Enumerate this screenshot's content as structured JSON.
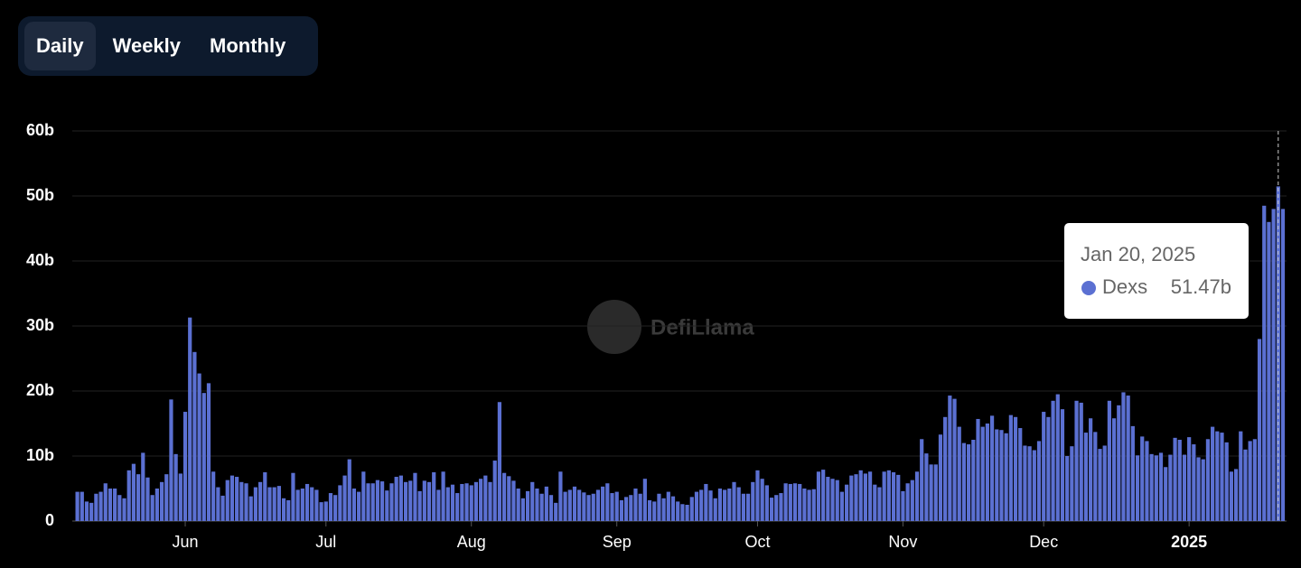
{
  "controls": {
    "buttons": [
      "Daily",
      "Weekly",
      "Monthly"
    ],
    "active": "Daily"
  },
  "watermark": "DefiLlama",
  "chart_data": {
    "type": "bar",
    "categories": [
      null,
      null,
      null,
      null,
      null,
      null,
      null,
      null,
      null,
      null,
      null,
      null,
      null,
      null,
      null,
      null,
      null,
      null,
      null,
      null,
      null,
      null,
      null,
      "Jun",
      null,
      null,
      null,
      null,
      null,
      null,
      null,
      null,
      null,
      null,
      null,
      null,
      null,
      null,
      null,
      null,
      null,
      null,
      null,
      null,
      null,
      null,
      null,
      null,
      null,
      null,
      null,
      null,
      null,
      "Jul",
      null,
      null,
      null,
      null,
      null,
      null,
      null,
      null,
      null,
      null,
      null,
      null,
      null,
      null,
      null,
      null,
      null,
      null,
      null,
      null,
      null,
      null,
      null,
      null,
      null,
      null,
      null,
      null,
      null,
      null,
      "Aug",
      null,
      null,
      null,
      null,
      null,
      null,
      null,
      null,
      null,
      null,
      null,
      null,
      null,
      null,
      null,
      null,
      null,
      null,
      null,
      null,
      null,
      null,
      null,
      null,
      null,
      null,
      null,
      null,
      null,
      null,
      "Sep",
      null,
      null,
      null,
      null,
      null,
      null,
      null,
      null,
      null,
      null,
      null,
      null,
      null,
      null,
      null,
      null,
      null,
      null,
      null,
      null,
      null,
      null,
      null,
      null,
      null,
      null,
      null,
      null,
      null,
      "Oct",
      null,
      null,
      null,
      null,
      null,
      null,
      null,
      null,
      null,
      null,
      null,
      null,
      null,
      null,
      null,
      null,
      null,
      null,
      null,
      null,
      null,
      null,
      null,
      null,
      null,
      null,
      null,
      null,
      null,
      null,
      "Nov",
      null,
      null,
      null,
      null,
      null,
      null,
      null,
      null,
      null,
      null,
      null,
      null,
      null,
      null,
      null,
      null,
      null,
      null,
      null,
      null,
      null,
      null,
      null,
      null,
      null,
      null,
      null,
      null,
      null,
      "Dec",
      null,
      null,
      null,
      null,
      null,
      null,
      null,
      null,
      null,
      null,
      null,
      null,
      null,
      null,
      null,
      null,
      null,
      null,
      null,
      null,
      null,
      null,
      null,
      null,
      null,
      null,
      null,
      null,
      null,
      null,
      "2025",
      null,
      null,
      null,
      null,
      null,
      null,
      null,
      null,
      null,
      null,
      null,
      null,
      null,
      null,
      null,
      null,
      null,
      null,
      null,
      null
    ],
    "series": [
      {
        "name": "Dexs",
        "color": "#5b70d2",
        "values": [
          4.5,
          4.5,
          3,
          2.8,
          4.2,
          4.5,
          5.8,
          5,
          5,
          4,
          3.5,
          7.8,
          8.8,
          7.2,
          10.5,
          6.7,
          4,
          5,
          6,
          7.2,
          18.7,
          10.3,
          7.3,
          16.8,
          31.3,
          26,
          22.7,
          19.7,
          21.2,
          7.6,
          5.2,
          3.9,
          6.3,
          7,
          6.8,
          6,
          5.8,
          3.8,
          5.2,
          6,
          7.5,
          5.2,
          5.2,
          5.4,
          3.5,
          3.2,
          7.4,
          4.8,
          5,
          5.7,
          5.2,
          4.8,
          2.9,
          3,
          4.3,
          4,
          5.5,
          7,
          9.5,
          5,
          4.5,
          7.6,
          5.8,
          5.8,
          6.3,
          6.1,
          4.7,
          5.8,
          6.8,
          7,
          6,
          6.2,
          7.4,
          4.6,
          6.2,
          6,
          7.5,
          4.8,
          7.6,
          5.2,
          5.6,
          4.3,
          5.7,
          5.8,
          5.5,
          6,
          6.5,
          7,
          6,
          9.3,
          18.3,
          7.4,
          6.9,
          6.2,
          5,
          3.5,
          4.6,
          6,
          5,
          4.2,
          5.3,
          4,
          2.8,
          7.6,
          4.5,
          4.8,
          5.3,
          4.8,
          4.4,
          4,
          4.2,
          4.8,
          5.3,
          5.8,
          4.3,
          4.5,
          3.2,
          3.7,
          4,
          5,
          4.2,
          6.5,
          3.2,
          3,
          4.2,
          3.5,
          4.5,
          3.8,
          3,
          2.6,
          2.5,
          3.7,
          4.5,
          4.8,
          5.7,
          4.7,
          3.5,
          5,
          4.8,
          5,
          6,
          5.2,
          4.2,
          4.2,
          6,
          7.8,
          6.5,
          5.5,
          3.6,
          4,
          4.3,
          5.8,
          5.7,
          5.8,
          5.7,
          5,
          4.8,
          4.9,
          7.6,
          7.9,
          6.8,
          6.5,
          6.3,
          4.5,
          5.6,
          7,
          7.2,
          7.8,
          7.3,
          7.6,
          5.6,
          5.2,
          7.6,
          7.8,
          7.5,
          7.1,
          4.6,
          5.8,
          6.3,
          7.6,
          12.6,
          10.4,
          8.7,
          8.7,
          13.3,
          16,
          19.3,
          18.8,
          14.5,
          12,
          11.8,
          12.5,
          15.7,
          14.5,
          15,
          16.2,
          14.1,
          14,
          13.5,
          16.3,
          16,
          14.3,
          11.6,
          11.5,
          10.9,
          12.3,
          16.8,
          16,
          18.5,
          19.5,
          17.2,
          10,
          11.5,
          18.5,
          18.2,
          13.6,
          15.8,
          13.7,
          11.1,
          11.6,
          18.5,
          15.8,
          17.8,
          19.8,
          19.3,
          14.6,
          10.1,
          13,
          12.3,
          10.3,
          10.1,
          10.5,
          8.3,
          10.2,
          12.8,
          12.5,
          10.2,
          12.9,
          11.8,
          9.8,
          9.5,
          12.6,
          14.5,
          13.8,
          13.6,
          12.1,
          7.6,
          8,
          13.8,
          11,
          12.3,
          12.6,
          28,
          48.5,
          46,
          48,
          51.47,
          48
        ]
      }
    ],
    "ylim": [
      0,
      60
    ],
    "yticks": [
      0,
      {
        "value": 10,
        "label": "10b"
      },
      {
        "value": 20,
        "label": "20b"
      },
      {
        "value": 30,
        "label": "30b"
      },
      {
        "value": 40,
        "label": "40b"
      },
      {
        "value": 50,
        "label": "50b"
      },
      {
        "value": 60,
        "label": "60b"
      }
    ],
    "grid": true,
    "tooltip": {
      "title": "Jan 20, 2025",
      "value": 51.47,
      "value_label": "51.47b"
    }
  }
}
